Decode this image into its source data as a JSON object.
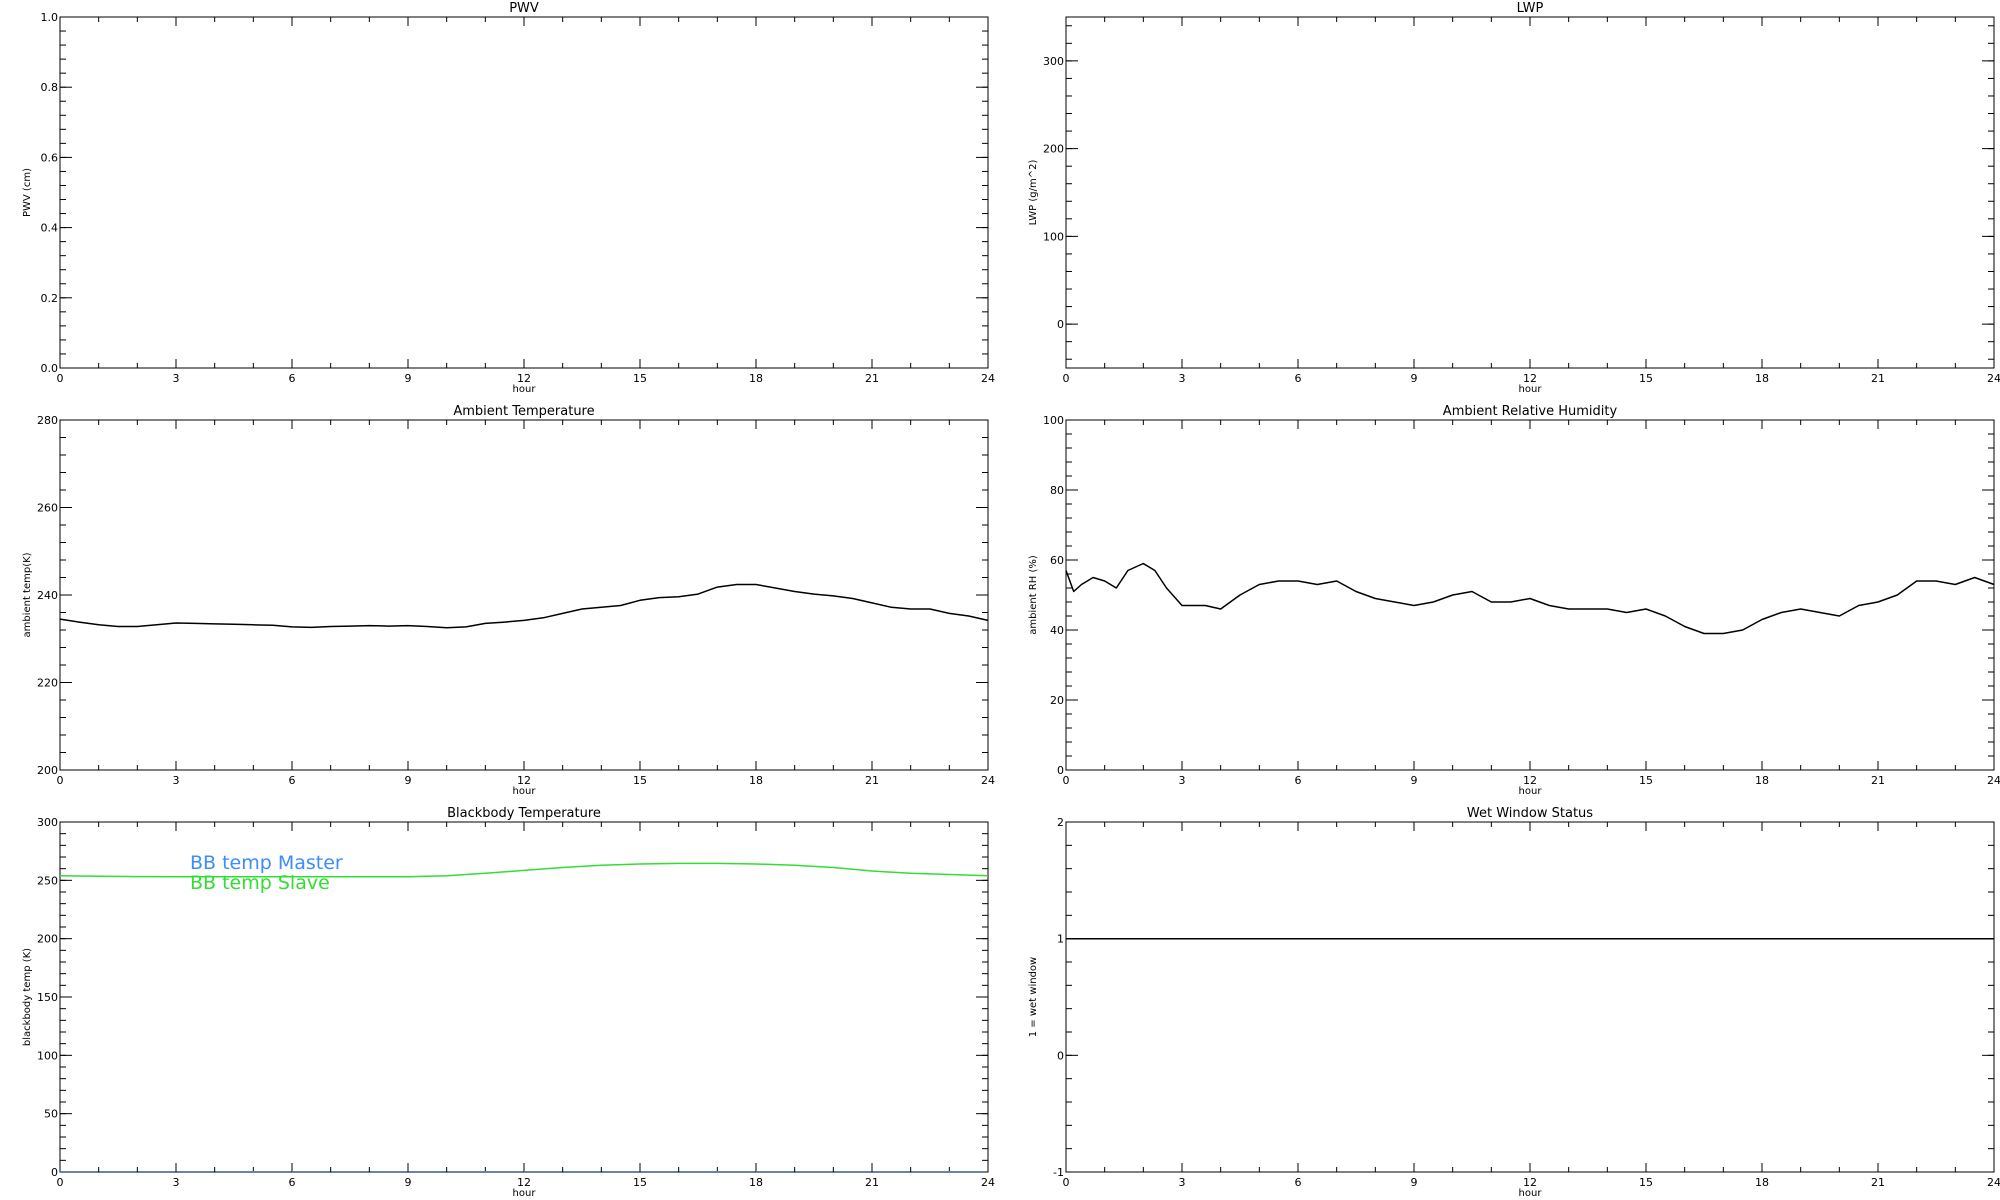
{
  "chart_data": [
    {
      "type": "line",
      "title": "PWV",
      "xlabel": "hour",
      "ylabel": "PWV (cm)",
      "xlim": [
        0,
        24
      ],
      "ylim": [
        0,
        1
      ],
      "xticks": [
        0,
        3,
        6,
        9,
        12,
        15,
        18,
        21,
        24
      ],
      "xtick_labels": [
        "0",
        "3",
        "6",
        "9",
        "12",
        "15",
        "18",
        "21",
        "24"
      ],
      "yticks": [
        0,
        0.2,
        0.4,
        0.6,
        0.8,
        1.0
      ],
      "ytick_labels": [
        "0.0",
        "0.2",
        "0.4",
        "0.6",
        "0.8",
        "1.0"
      ],
      "series": []
    },
    {
      "type": "line",
      "title": "LWP",
      "xlabel": "hour",
      "ylabel": "LWP (g/m^2)",
      "xlim": [
        0,
        24
      ],
      "ylim": [
        -50,
        350
      ],
      "xticks": [
        0,
        3,
        6,
        9,
        12,
        15,
        18,
        21,
        24
      ],
      "xtick_labels": [
        "0",
        "3",
        "6",
        "9",
        "12",
        "15",
        "18",
        "21",
        "24"
      ],
      "yticks": [
        0,
        100,
        200,
        300
      ],
      "ytick_labels": [
        "0",
        "100",
        "200",
        "300"
      ],
      "series": []
    },
    {
      "type": "line",
      "title": "Ambient Temperature",
      "xlabel": "hour",
      "ylabel": "ambient temp(K)",
      "xlim": [
        0,
        24
      ],
      "ylim": [
        200,
        280
      ],
      "xticks": [
        0,
        3,
        6,
        9,
        12,
        15,
        18,
        21,
        24
      ],
      "xtick_labels": [
        "0",
        "3",
        "6",
        "9",
        "12",
        "15",
        "18",
        "21",
        "24"
      ],
      "yticks": [
        200,
        220,
        240,
        260,
        280
      ],
      "ytick_labels": [
        "200",
        "220",
        "240",
        "260",
        "280"
      ],
      "series": [
        {
          "color": "#000000",
          "x": [
            0,
            0.5,
            1,
            1.5,
            2,
            2.5,
            3,
            3.5,
            4,
            4.5,
            5,
            5.5,
            6,
            6.5,
            7,
            7.5,
            8,
            8.5,
            9,
            9.5,
            10,
            10.5,
            11,
            11.5,
            12,
            12.5,
            13,
            13.5,
            14,
            14.5,
            15,
            15.5,
            16,
            16.5,
            17,
            17.5,
            18,
            18.5,
            19,
            19.5,
            20,
            20.5,
            21,
            21.5,
            22,
            22.5,
            23,
            23.5,
            24
          ],
          "y": [
            234.5,
            233.8,
            233.2,
            232.8,
            232.8,
            233.2,
            233.6,
            233.5,
            233.4,
            233.3,
            233.2,
            233.1,
            232.7,
            232.6,
            232.8,
            232.9,
            233.0,
            232.9,
            233.0,
            232.8,
            232.5,
            232.7,
            233.5,
            233.8,
            234.2,
            234.8,
            235.8,
            236.8,
            237.2,
            237.6,
            238.8,
            239.4,
            239.6,
            240.2,
            241.8,
            242.4,
            242.4,
            241.6,
            240.8,
            240.2,
            239.8,
            239.2,
            238.2,
            237.2,
            236.8,
            236.8,
            235.8,
            235.2,
            234.2
          ]
        }
      ]
    },
    {
      "type": "line",
      "title": "Ambient Relative Humidity",
      "xlabel": "hour",
      "ylabel": "ambient RH (%)",
      "xlim": [
        0,
        24
      ],
      "ylim": [
        0,
        100
      ],
      "xticks": [
        0,
        3,
        6,
        9,
        12,
        15,
        18,
        21,
        24
      ],
      "xtick_labels": [
        "0",
        "3",
        "6",
        "9",
        "12",
        "15",
        "18",
        "21",
        "24"
      ],
      "yticks": [
        0,
        20,
        40,
        60,
        80,
        100
      ],
      "ytick_labels": [
        "0",
        "20",
        "40",
        "60",
        "80",
        "100"
      ],
      "series": [
        {
          "color": "#000000",
          "x": [
            0,
            0.2,
            0.4,
            0.7,
            1,
            1.3,
            1.6,
            2,
            2.3,
            2.6,
            3,
            3.3,
            3.6,
            4,
            4.5,
            5,
            5.5,
            6,
            6.5,
            7,
            7.5,
            8,
            8.5,
            9,
            9.5,
            10,
            10.5,
            11,
            11.5,
            12,
            12.5,
            13,
            13.5,
            14,
            14.5,
            15,
            15.5,
            16,
            16.5,
            17,
            17.5,
            18,
            18.5,
            19,
            19.5,
            20,
            20.5,
            21,
            21.5,
            22,
            22.5,
            23,
            23.5,
            24
          ],
          "y": [
            57,
            51,
            53,
            55,
            54,
            52,
            57,
            59,
            57,
            52,
            47,
            47,
            47,
            46,
            50,
            53,
            54,
            54,
            53,
            54,
            51,
            49,
            48,
            47,
            48,
            50,
            51,
            48,
            48,
            49,
            47,
            46,
            46,
            46,
            45,
            46,
            44,
            41,
            39,
            39,
            40,
            43,
            45,
            46,
            45,
            44,
            47,
            48,
            50,
            54,
            54,
            53,
            55,
            53
          ]
        }
      ]
    },
    {
      "type": "line",
      "title": "Blackbody Temperature",
      "xlabel": "hour",
      "ylabel": "blackbody temp (K)",
      "xlim": [
        0,
        24
      ],
      "ylim": [
        0,
        300
      ],
      "xticks": [
        0,
        3,
        6,
        9,
        12,
        15,
        18,
        21,
        24
      ],
      "xtick_labels": [
        "0",
        "3",
        "6",
        "9",
        "12",
        "15",
        "18",
        "21",
        "24"
      ],
      "yticks": [
        0,
        50,
        100,
        150,
        200,
        250,
        300
      ],
      "ytick_labels": [
        "0",
        "50",
        "100",
        "150",
        "200",
        "250",
        "300"
      ],
      "legend": "top-left",
      "series": [
        {
          "name": "BB temp Master",
          "color": "#3c8cff",
          "dotted": true,
          "x": [
            0,
            3,
            6,
            9,
            12,
            15,
            18,
            21,
            24
          ],
          "y": [
            0,
            0,
            0,
            0,
            0,
            0,
            0,
            0,
            0
          ]
        },
        {
          "name": "BB temp Slave",
          "color": "#33dd33",
          "x": [
            0,
            1,
            2,
            3,
            4,
            5,
            6,
            7,
            8,
            9,
            10,
            11,
            12,
            13,
            14,
            15,
            16,
            17,
            18,
            19,
            20,
            21,
            22,
            23,
            24
          ],
          "y": [
            254,
            253.5,
            253.2,
            253,
            253,
            253,
            253,
            253,
            253,
            253,
            254,
            256,
            258.5,
            261,
            263,
            264,
            264.5,
            264.5,
            264,
            263,
            261,
            258,
            256,
            255,
            254
          ]
        }
      ]
    },
    {
      "type": "line",
      "title": "Wet Window Status",
      "xlabel": "hour",
      "ylabel": "1 = wet window",
      "xlim": [
        0,
        24
      ],
      "ylim": [
        -1,
        2
      ],
      "xticks": [
        0,
        3,
        6,
        9,
        12,
        15,
        18,
        21,
        24
      ],
      "xtick_labels": [
        "0",
        "3",
        "6",
        "9",
        "12",
        "15",
        "18",
        "21",
        "24"
      ],
      "yticks": [
        -1,
        0,
        1,
        2
      ],
      "ytick_labels": [
        "-1",
        "0",
        "1",
        "2"
      ],
      "series": [
        {
          "color": "#000000",
          "x": [
            0,
            24
          ],
          "y": [
            1,
            1
          ]
        }
      ]
    }
  ]
}
